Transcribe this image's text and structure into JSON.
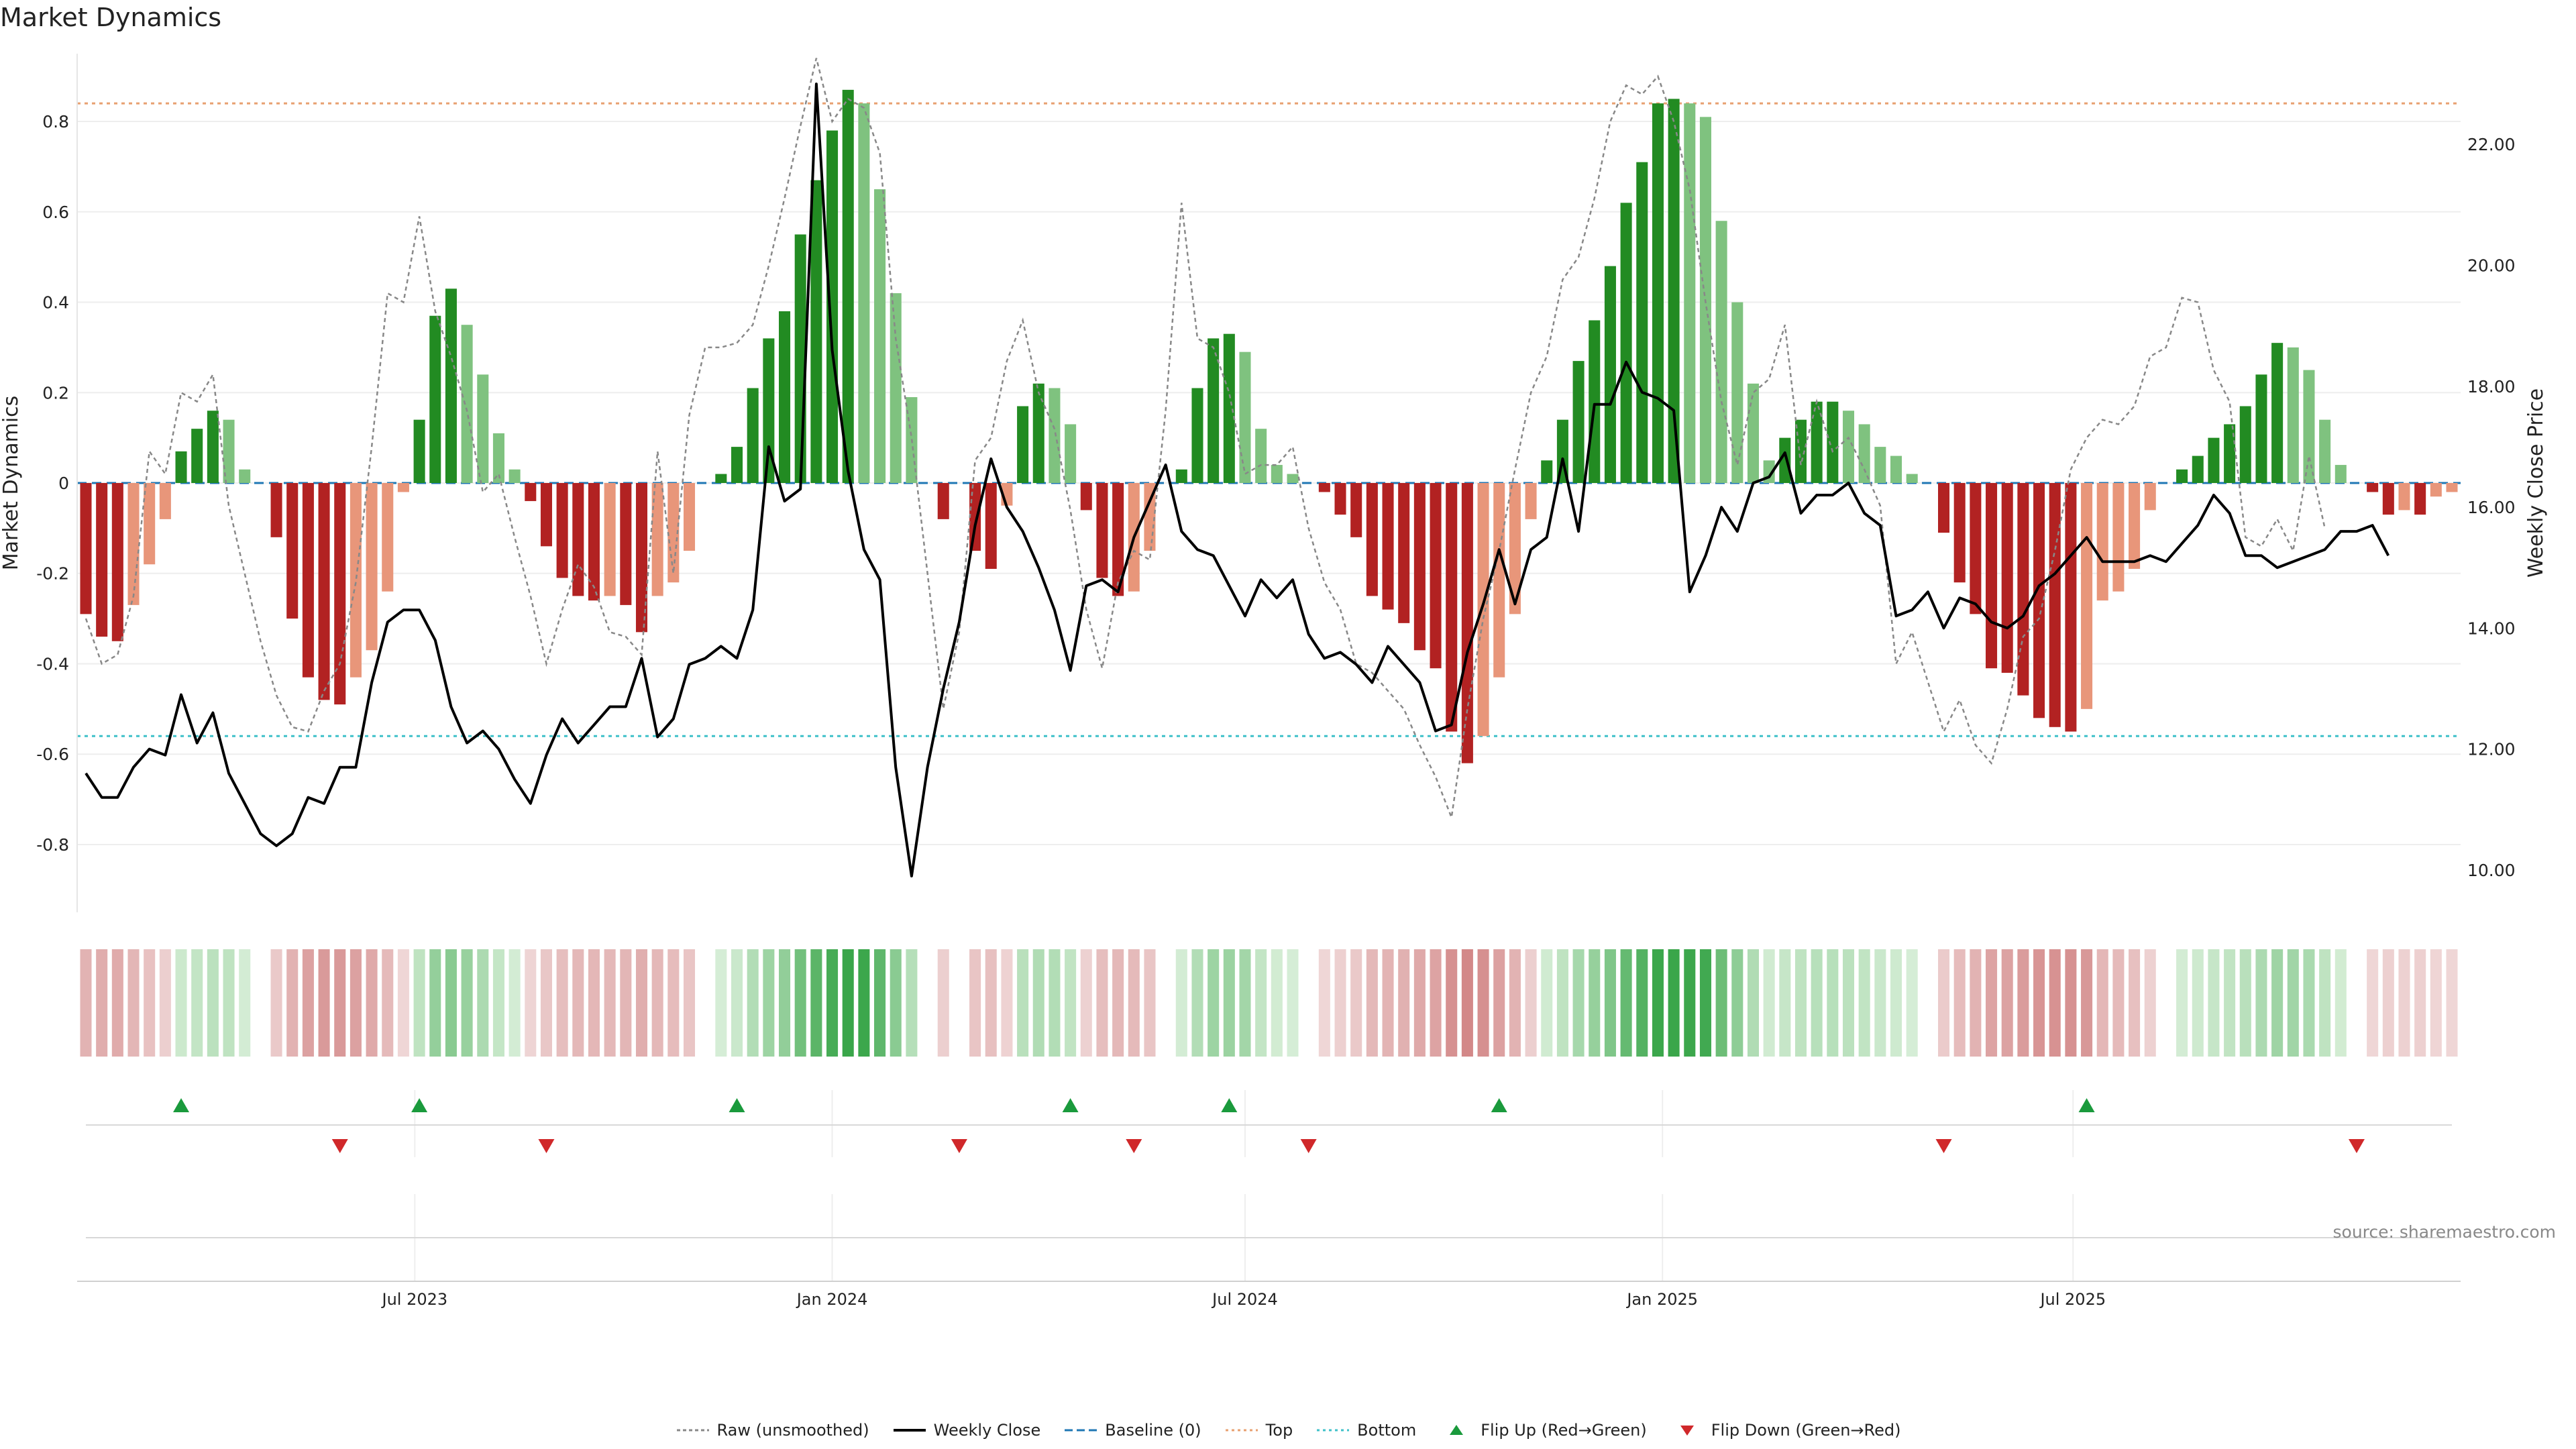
{
  "title": "Market Dynamics",
  "source_text": "source: sharemaestro.com",
  "colors": {
    "up_strong": "#228b22",
    "up_weak": "#7fc27f",
    "down_strong": "#b22222",
    "down_weak": "#e8967a",
    "close": "#000000",
    "raw": "#888888",
    "baseline": "#1f77b4",
    "top": "#e8a070",
    "bottom": "#3fc1c9",
    "flip_up": "#1a9a3c",
    "flip_down": "#d0282a"
  },
  "legend": [
    {
      "label": "Raw (unsmoothed)",
      "style": "raw"
    },
    {
      "label": "Weekly Close",
      "style": "close"
    },
    {
      "label": "Baseline (0)",
      "style": "baseline"
    },
    {
      "label": "Top",
      "style": "top"
    },
    {
      "label": "Bottom",
      "style": "bottom"
    },
    {
      "label": "Flip Up (Red→Green)",
      "style": "flip_up"
    },
    {
      "label": "Flip Down (Green→Red)",
      "style": "flip_down"
    }
  ],
  "chart_data": {
    "type": "bar",
    "x_start": "2023-02-06",
    "x_step_days": 7,
    "ylabel": "Market Dynamics",
    "ylabel_right": "Weekly Close Price",
    "ylim": [
      -0.95,
      0.95
    ],
    "ylim_right": [
      9.3,
      23.5
    ],
    "yticks": [
      -0.8,
      -0.6,
      -0.4,
      -0.2,
      0,
      0.2,
      0.4,
      0.6,
      0.8
    ],
    "yticks_right": [
      10.0,
      12.0,
      14.0,
      16.0,
      18.0,
      20.0,
      22.0
    ],
    "x_ticks": [
      {
        "date": "2023-07-01",
        "label": "Jul 2023"
      },
      {
        "date": "2024-01-01",
        "label": "Jan 2024"
      },
      {
        "date": "2024-07-01",
        "label": "Jul 2024"
      },
      {
        "date": "2025-01-01",
        "label": "Jan 2025"
      },
      {
        "date": "2025-07-01",
        "label": "Jul 2025"
      }
    ],
    "top_level": 0.84,
    "bottom_level": -0.56,
    "baseline": 0,
    "grid": true,
    "legend_position": "bottom-center",
    "series": [
      {
        "name": "Market Dynamics",
        "values": [
          -0.29,
          -0.34,
          -0.35,
          -0.27,
          -0.18,
          -0.08,
          0.07,
          0.12,
          0.16,
          0.14,
          0.03,
          0,
          -0.12,
          -0.3,
          -0.43,
          -0.48,
          -0.49,
          -0.43,
          -0.37,
          -0.24,
          -0.02,
          0.14,
          0.37,
          0.43,
          0.35,
          0.24,
          0.11,
          0.03,
          -0.04,
          -0.14,
          -0.21,
          -0.25,
          -0.26,
          -0.25,
          -0.27,
          -0.33,
          -0.25,
          -0.22,
          -0.15,
          0,
          0.02,
          0.08,
          0.21,
          0.32,
          0.38,
          0.55,
          0.67,
          0.78,
          0.87,
          0.84,
          0.65,
          0.42,
          0.19,
          0,
          -0.08,
          0,
          -0.15,
          -0.19,
          -0.05,
          0.17,
          0.22,
          0.21,
          0.13,
          -0.06,
          -0.21,
          -0.25,
          -0.24,
          -0.15,
          0,
          0.03,
          0.21,
          0.32,
          0.33,
          0.29,
          0.12,
          0.04,
          0.02,
          0,
          -0.02,
          -0.07,
          -0.12,
          -0.25,
          -0.28,
          -0.31,
          -0.37,
          -0.41,
          -0.55,
          -0.62,
          -0.56,
          -0.43,
          -0.29,
          -0.08,
          0.05,
          0.14,
          0.27,
          0.36,
          0.48,
          0.62,
          0.71,
          0.84,
          0.85,
          0.84,
          0.81,
          0.58,
          0.4,
          0.22,
          0.05,
          0.1,
          0.14,
          0.18,
          0.18,
          0.16,
          0.13,
          0.08,
          0.06,
          0.02,
          0,
          -0.11,
          -0.22,
          -0.29,
          -0.41,
          -0.42,
          -0.47,
          -0.52,
          -0.54,
          -0.55,
          -0.5,
          -0.26,
          -0.24,
          -0.19,
          -0.06,
          0,
          0.03,
          0.06,
          0.1,
          0.13,
          0.17,
          0.24,
          0.31,
          0.3,
          0.25,
          0.14,
          0.04,
          0,
          -0.02,
          -0.07,
          -0.06,
          -0.07,
          -0.03,
          -0.02
        ]
      },
      {
        "name": "Raw (unsmoothed)",
        "values": [
          -0.3,
          -0.4,
          -0.38,
          -0.25,
          0.07,
          0.02,
          0.2,
          0.18,
          0.24,
          -0.05,
          -0.2,
          -0.35,
          -0.47,
          -0.54,
          -0.55,
          -0.46,
          -0.4,
          -0.22,
          0.08,
          0.42,
          0.4,
          0.59,
          0.38,
          0.28,
          0.16,
          -0.02,
          0.02,
          -0.12,
          -0.25,
          -0.4,
          -0.28,
          -0.18,
          -0.23,
          -0.33,
          -0.34,
          -0.38,
          0.07,
          -0.2,
          0.15,
          0.3,
          0.3,
          0.31,
          0.35,
          0.48,
          0.63,
          0.79,
          0.94,
          0.8,
          0.85,
          0.83,
          0.73,
          0.32,
          0.1,
          -0.2,
          -0.5,
          -0.33,
          0.05,
          0.1,
          0.27,
          0.36,
          0.2,
          0.12,
          -0.06,
          -0.28,
          -0.41,
          -0.22,
          -0.15,
          -0.17,
          0.16,
          0.62,
          0.32,
          0.3,
          0.2,
          0.02,
          0.04,
          0.04,
          0.08,
          -0.1,
          -0.22,
          -0.28,
          -0.4,
          -0.42,
          -0.46,
          -0.5,
          -0.58,
          -0.65,
          -0.74,
          -0.5,
          -0.3,
          -0.15,
          0.03,
          0.2,
          0.28,
          0.45,
          0.5,
          0.63,
          0.8,
          0.88,
          0.86,
          0.9,
          0.8,
          0.65,
          0.4,
          0.18,
          0.04,
          0.2,
          0.23,
          0.35,
          0.04,
          0.18,
          0.07,
          0.1,
          0.03,
          -0.05,
          -0.4,
          -0.33,
          -0.44,
          -0.55,
          -0.48,
          -0.58,
          -0.62,
          -0.5,
          -0.34,
          -0.3,
          -0.15,
          0.03,
          0.1,
          0.14,
          0.13,
          0.17,
          0.28,
          0.3,
          0.41,
          0.4,
          0.25,
          0.18,
          -0.12,
          -0.14,
          -0.08,
          -0.15,
          0.06,
          -0.1
        ]
      },
      {
        "name": "Weekly Close",
        "values": [
          11.6,
          11.2,
          11.2,
          11.7,
          12.0,
          11.9,
          12.9,
          12.1,
          12.6,
          11.6,
          11.1,
          10.6,
          10.4,
          10.6,
          11.2,
          11.1,
          11.7,
          11.7,
          13.1,
          14.1,
          14.3,
          14.3,
          13.8,
          12.7,
          12.1,
          12.3,
          12.0,
          11.5,
          11.1,
          11.9,
          12.5,
          12.1,
          12.4,
          12.7,
          12.7,
          13.5,
          12.2,
          12.5,
          13.4,
          13.5,
          13.7,
          13.5,
          14.3,
          17.0,
          16.1,
          16.3,
          23.0,
          18.6,
          16.6,
          15.3,
          14.8,
          11.7,
          9.9,
          11.7,
          13.0,
          14.1,
          15.7,
          16.8,
          16.0,
          15.6,
          15.0,
          14.3,
          13.3,
          14.7,
          14.8,
          14.6,
          15.5,
          16.1,
          16.7,
          15.6,
          15.3,
          15.2,
          14.7,
          14.2,
          14.8,
          14.5,
          14.8,
          13.9,
          13.5,
          13.6,
          13.4,
          13.1,
          13.7,
          13.4,
          13.1,
          12.3,
          12.4,
          13.6,
          14.4,
          15.3,
          14.4,
          15.3,
          15.5,
          16.8,
          15.6,
          17.7,
          17.7,
          18.4,
          17.9,
          17.8,
          17.6,
          14.6,
          15.2,
          16.0,
          15.6,
          16.4,
          16.5,
          16.9,
          15.9,
          16.2,
          16.2,
          16.4,
          15.9,
          15.7,
          14.2,
          14.3,
          14.6,
          14.0,
          14.5,
          14.4,
          14.1,
          14.0,
          14.2,
          14.7,
          14.9,
          15.2,
          15.5,
          15.1,
          15.1,
          15.1,
          15.2,
          15.1,
          15.4,
          15.7,
          16.2,
          15.9,
          15.2,
          15.2,
          15.0,
          15.1,
          15.2,
          15.3,
          15.6,
          15.6,
          15.7,
          15.2
        ]
      }
    ],
    "flip_up_dates": [
      "2023-03-20",
      "2023-07-03",
      "2023-11-20",
      "2024-04-15",
      "2024-06-24",
      "2024-10-21",
      "2025-07-07"
    ],
    "flip_down_dates": [
      "2023-05-29",
      "2023-08-28",
      "2024-02-26",
      "2024-05-13",
      "2024-07-29",
      "2025-05-05",
      "2025-11-03"
    ]
  }
}
